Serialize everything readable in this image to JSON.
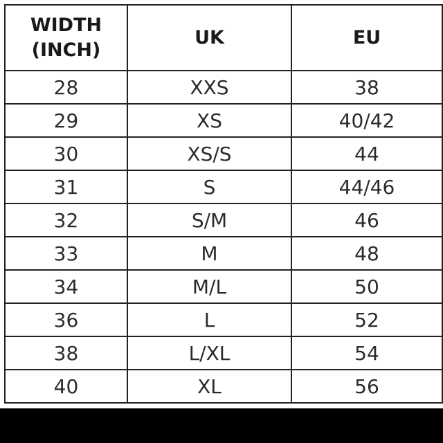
{
  "table": {
    "header": [
      "WIDTH (INCH)",
      "UK",
      "EU"
    ],
    "rows": [
      [
        "28",
        "XXS",
        "38"
      ],
      [
        "29",
        "XS",
        "40/42"
      ],
      [
        "30",
        "XS/S",
        "44"
      ],
      [
        "31",
        "S",
        "44/46"
      ],
      [
        "32",
        "S/M",
        "46"
      ],
      [
        "33",
        "M",
        "48"
      ],
      [
        "34",
        "M/L",
        "50"
      ],
      [
        "36",
        "L",
        "52"
      ],
      [
        "38",
        "L/XL",
        "54"
      ],
      [
        "40",
        "XL",
        "56"
      ]
    ]
  }
}
